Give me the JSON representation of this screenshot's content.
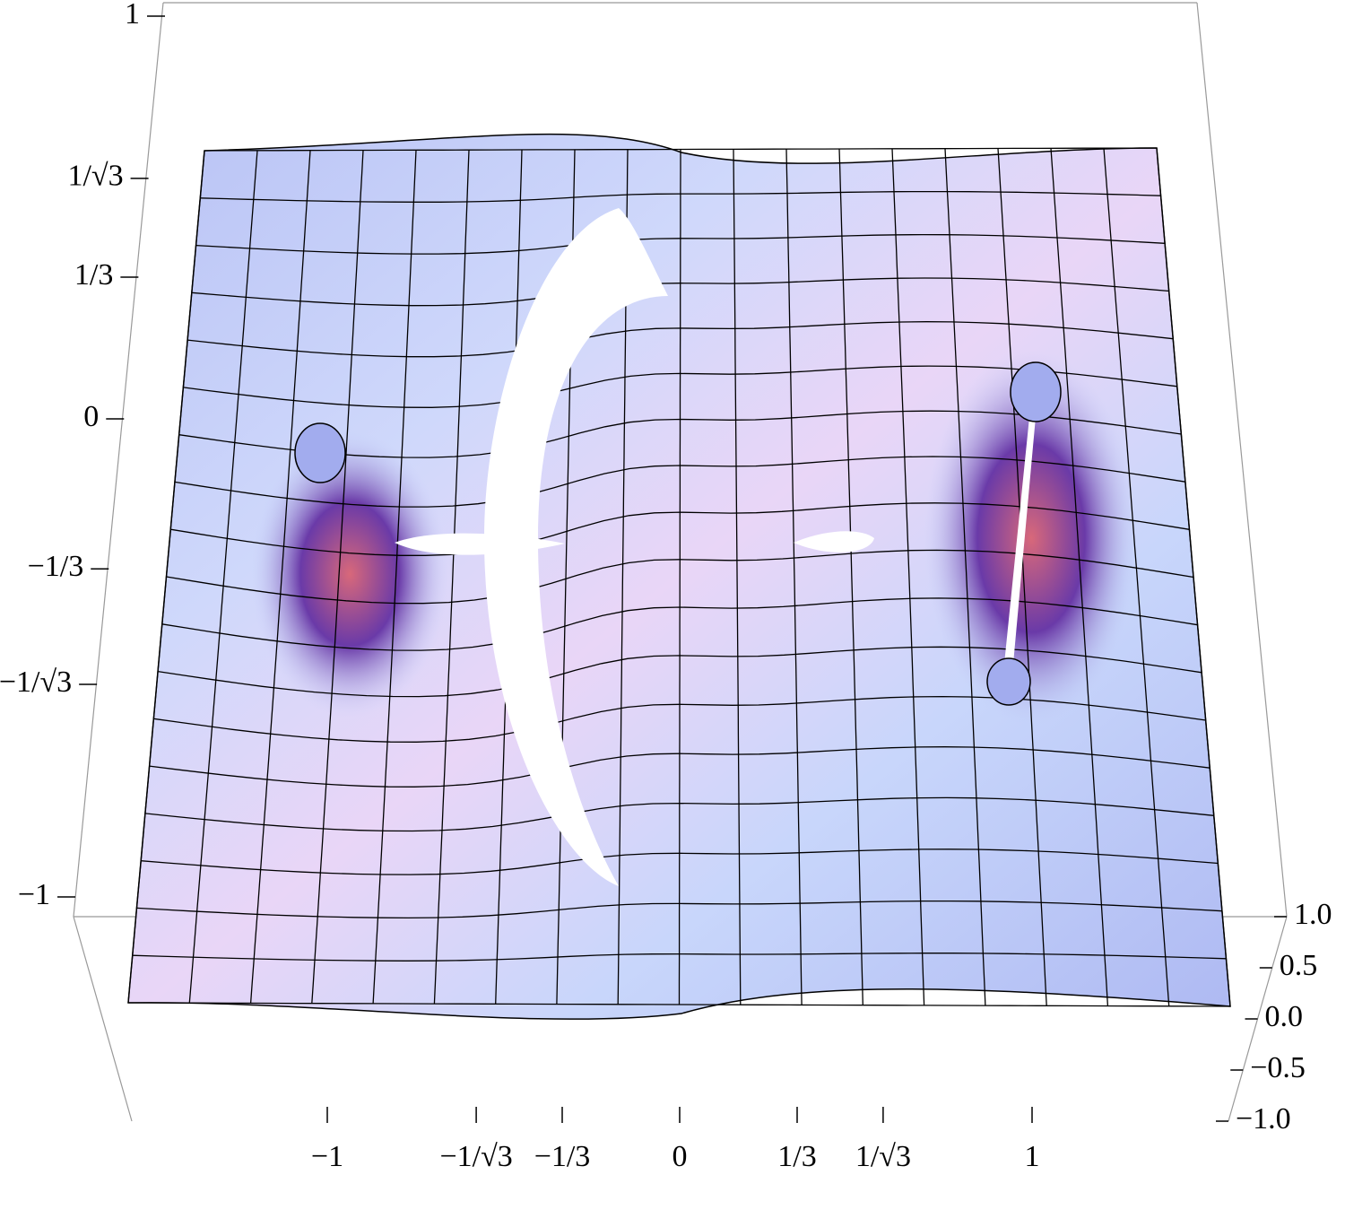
{
  "chart_data": {
    "type": "surface3d",
    "xlim": [
      -1,
      1
    ],
    "xticks": [
      {
        "value": -1,
        "label": "−1"
      },
      {
        "value": -0.57735,
        "label": "−1/√3"
      },
      {
        "value": -0.33333,
        "label": "−1/3"
      },
      0,
      {
        "value": 0.33333,
        "label": "1/3"
      },
      {
        "value": 0.57735,
        "label": "1/√3"
      },
      1
    ],
    "ylim": [
      -1,
      1
    ],
    "yticks": [
      1,
      {
        "value": 0.57735,
        "label": "1/√3"
      },
      {
        "value": 0.33333,
        "label": "1/3"
      },
      0,
      {
        "value": -0.33333,
        "label": "−1/3"
      },
      {
        "value": -0.57735,
        "label": "−1/√3"
      },
      {
        "value": -1,
        "label": "−1"
      }
    ],
    "zlim": [
      -1,
      1
    ],
    "zticks": [
      {
        "value": 1,
        "label": "1.0"
      },
      0.5,
      {
        "value": 0,
        "label": "0.0"
      },
      {
        "value": -0.5,
        "label": "−0.5"
      },
      {
        "value": -1,
        "label": "−1.0"
      }
    ]
  }
}
